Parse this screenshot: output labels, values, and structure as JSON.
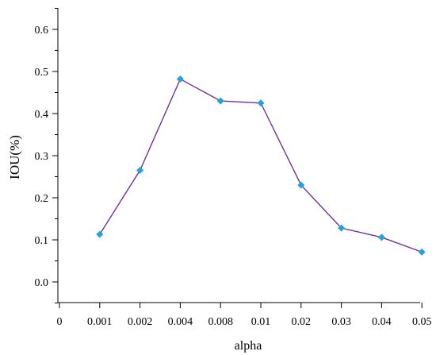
{
  "chart_data": {
    "type": "line",
    "title": "",
    "xlabel": "alpha",
    "ylabel": "IOU(%)",
    "categories": [
      "0",
      "0.001",
      "0.002",
      "0.004",
      "0.008",
      "0.01",
      "0.02",
      "0.03",
      "0.04",
      "0.05"
    ],
    "series": [
      {
        "x": [
          "0.001",
          "0.002",
          "0.004",
          "0.008",
          "0.01",
          "0.02",
          "0.03",
          "0.04",
          "0.05"
        ],
        "values": [
          0.113,
          0.265,
          0.482,
          0.43,
          0.425,
          0.23,
          0.128,
          0.106,
          0.071
        ],
        "line_color": "#7030a0",
        "marker_color": "#1ea4e6",
        "marker": "diamond"
      }
    ],
    "ylim": [
      -0.05,
      0.65
    ],
    "y_ticks": [
      0.0,
      0.1,
      0.2,
      0.3,
      0.4,
      0.5,
      0.6
    ],
    "y_tick_labels": [
      "0.0",
      "0.1",
      "0.2",
      "0.3",
      "0.4",
      "0.5",
      "0.6"
    ],
    "grid": false,
    "legend": "none"
  }
}
